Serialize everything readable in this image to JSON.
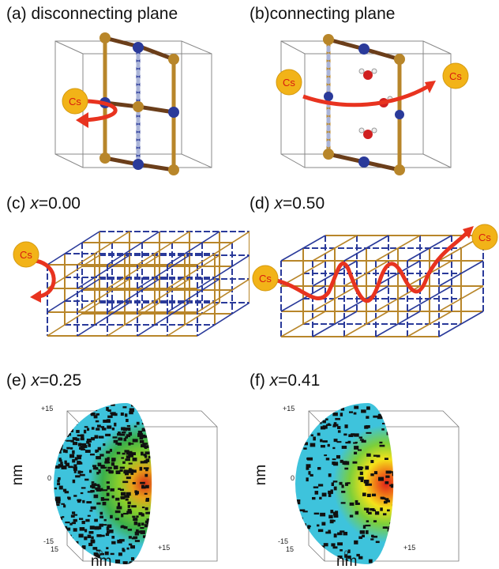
{
  "panels": {
    "a": {
      "label": "(a) disconnecting plane",
      "ion": "Cs"
    },
    "b": {
      "label": "(b)connecting plane",
      "ion_left": "Cs",
      "ion_right": "Cs"
    },
    "c": {
      "prefix": "(c) ",
      "var": "x",
      "value": "=0.00",
      "ion": "Cs"
    },
    "d": {
      "prefix": "(d) ",
      "var": "x",
      "value": "=0.50",
      "ion_left": "Cs",
      "ion_right": "Cs"
    },
    "e": {
      "prefix": "(e) ",
      "var": "x",
      "value": "=0.25",
      "y_top": "+15",
      "y_mid": "0",
      "y_bot": "-15",
      "x_left": "15",
      "x_mid": "0",
      "x_right": "+15",
      "ylabel": "nm",
      "xlabel": "nm"
    },
    "f": {
      "prefix": "(f) ",
      "var": "x",
      "value": "=0.41",
      "y_top": "+15",
      "y_mid": "0",
      "y_bot": "-15",
      "x_left": "15",
      "x_mid": "0",
      "x_right": "+15",
      "ylabel": "nm",
      "xlabel": "nm"
    }
  },
  "colors": {
    "gold": "#b8862a",
    "blue": "#2a3a9a",
    "arrow": "#e8331f",
    "cs_ball": "#f2b318",
    "cs_text": "#d81b0f",
    "cyan": "#3ec3dc"
  }
}
